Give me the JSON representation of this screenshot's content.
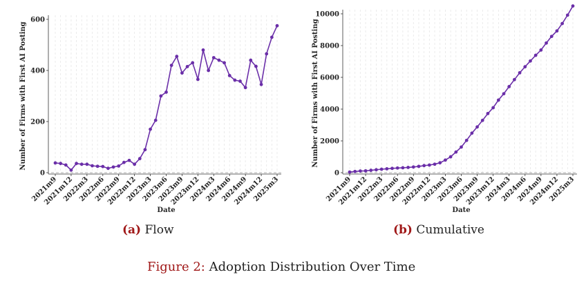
{
  "chart_data": [
    {
      "type": "line",
      "title": "Flow",
      "caption_label": "(a)",
      "caption_text": "Flow",
      "xlabel": "Date",
      "ylabel": "Number of Firms with First AI Posting",
      "ylim": [
        0,
        600
      ],
      "yticks": [
        0,
        200,
        400,
        600
      ],
      "xtick_labels": [
        "2021m9",
        "2021m12",
        "2022m3",
        "2022m6",
        "2022m9",
        "2022m12",
        "2023m3",
        "2023m6",
        "2023m9",
        "2023m12",
        "2024m3",
        "2024m6",
        "2024m9",
        "2024m12",
        "2025m3"
      ],
      "series": [
        {
          "name": "Flow",
          "color": "#6a2ea8",
          "values": [
            38,
            36,
            30,
            10,
            36,
            33,
            33,
            27,
            25,
            24,
            17,
            22,
            26,
            40,
            48,
            33,
            55,
            90,
            170,
            205,
            300,
            315,
            420,
            455,
            390,
            415,
            430,
            365,
            480,
            400,
            450,
            440,
            430,
            380,
            362,
            358,
            333,
            440,
            416,
            345,
            465,
            530,
            575
          ]
        }
      ]
    },
    {
      "type": "line",
      "title": "Cumulative",
      "caption_label": "(b)",
      "caption_text": "Cumulative",
      "xlabel": "Date",
      "ylabel": "Number of Firms with First AI Posting",
      "ylim": [
        0,
        10000
      ],
      "yticks": [
        0,
        2000,
        4000,
        6000,
        8000,
        10000
      ],
      "xtick_labels": [
        "2021m9",
        "2021m12",
        "2022m3",
        "2022m6",
        "2022m9",
        "2022m12",
        "2023m3",
        "2023m6",
        "2023m9",
        "2023m12",
        "2024m3",
        "2024m6",
        "2024m9",
        "2024m12",
        "2025m3"
      ],
      "series": [
        {
          "name": "Cumulative",
          "color": "#6a2ea8",
          "values": [
            38,
            74,
            104,
            114,
            150,
            183,
            216,
            243,
            268,
            292,
            309,
            331,
            357,
            397,
            445,
            478,
            533,
            623,
            793,
            998,
            1298,
            1613,
            2033,
            2488,
            2878,
            3293,
            3723,
            4088,
            4568,
            4968,
            5418,
            5858,
            6288,
            6668,
            7030,
            7388,
            7721,
            8161,
            8577,
            8922,
            9387,
            9917,
            10492
          ]
        }
      ]
    }
  ],
  "figure_caption": {
    "label": "Figure 2:",
    "text": "Adoption Distribution Over Time"
  }
}
